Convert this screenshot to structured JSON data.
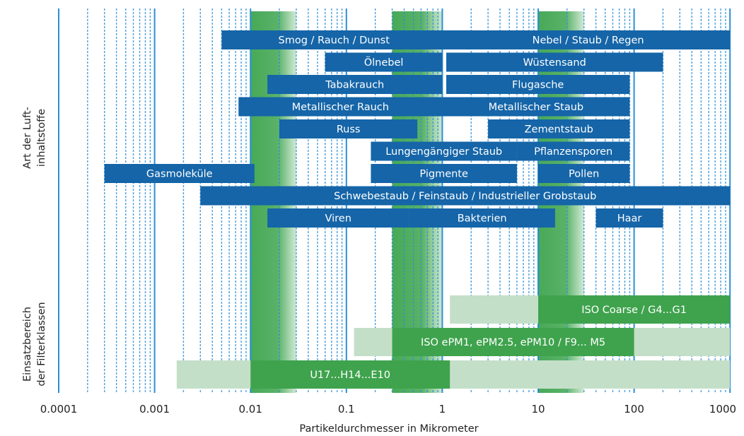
{
  "chart_data": {
    "type": "bar",
    "orientation": "horizontal-range",
    "x_scale": "log",
    "xlim": [
      0.0001,
      1000
    ],
    "xlabel": "Partikeldurchmesser in Mikrometer",
    "x_ticks": [
      {
        "value": 0.0001,
        "label": "0.0001"
      },
      {
        "value": 0.001,
        "label": "0.001"
      },
      {
        "value": 0.01,
        "label": "0.01"
      },
      {
        "value": 0.1,
        "label": "0.1"
      },
      {
        "value": 1,
        "label": "1"
      },
      {
        "value": 10,
        "label": "10"
      },
      {
        "value": 100,
        "label": "100"
      },
      {
        "value": 1000,
        "label": "1000"
      }
    ],
    "group_labels": {
      "contaminants": [
        "Art der Luft-",
        "inhaltstoffe"
      ],
      "filter_classes": [
        "Einsatzbereich",
        "der Filterklassen"
      ]
    },
    "colors": {
      "contaminant_bar": "#1565a8",
      "gridline": "#2a8fd8",
      "filter_main": "#3fa34d",
      "filter_extended": "#c4dfc8",
      "band": "#47a957"
    },
    "highlight_bands": [
      {
        "start": 0.01,
        "end": 0.03
      },
      {
        "start": 0.3,
        "end": 1.0
      },
      {
        "start": 10,
        "end": 30
      }
    ],
    "contaminants": [
      {
        "label": "Smog / Rauch / Dunst",
        "start": 0.005,
        "end": 1.1,
        "row": 0
      },
      {
        "label": "Nebel / Staub / Regen",
        "start": 1.1,
        "end": 1000,
        "row": 0
      },
      {
        "label": "Ölnebel",
        "start": 0.06,
        "end": 1.0,
        "row": 1
      },
      {
        "label": "Wüstensand",
        "start": 1.1,
        "end": 200,
        "row": 1
      },
      {
        "label": "Tabakrauch",
        "start": 0.015,
        "end": 1.0,
        "row": 2
      },
      {
        "label": "Flugasche",
        "start": 1.1,
        "end": 90,
        "row": 2
      },
      {
        "label": "Metallischer Rauch",
        "start": 0.0075,
        "end": 1.0,
        "row": 3
      },
      {
        "label": "Metallischer Staub",
        "start": 1.0,
        "end": 90,
        "row": 3
      },
      {
        "label": "Russ",
        "start": 0.02,
        "end": 0.55,
        "row": 4
      },
      {
        "label": "Zementstaub",
        "start": 3,
        "end": 90,
        "row": 4
      },
      {
        "label": "Lungengängiger Staub",
        "start": 0.18,
        "end": 6,
        "row": 5
      },
      {
        "label": "Pflanzensporen",
        "start": 6,
        "end": 90,
        "row": 5
      },
      {
        "label": "Gasmoleküle",
        "start": 0.0003,
        "end": 0.011,
        "row": 6
      },
      {
        "label": "Pigmente",
        "start": 0.18,
        "end": 6,
        "row": 6
      },
      {
        "label": "Pollen",
        "start": 10,
        "end": 90,
        "row": 6
      },
      {
        "label": "Schwebestaub / Feinstaub / Industrieller Grobstaub",
        "start": 0.003,
        "end": 1000,
        "row": 7
      },
      {
        "label": "Viren",
        "start": 0.015,
        "end": 0.45,
        "row": 8
      },
      {
        "label": "Bakterien",
        "start": 0.45,
        "end": 15,
        "row": 8
      },
      {
        "label": "Haar",
        "start": 40,
        "end": 200,
        "row": 8
      }
    ],
    "filter_classes": [
      {
        "label": "ISO Coarse / G4...G1",
        "main_start": 10,
        "main_end": 1000,
        "ext_start": 1.2,
        "ext_end": 10,
        "row": 0
      },
      {
        "label": "ISO ePM1, ePM2.5, ePM10 / F9... M5",
        "main_start": 0.3,
        "main_end": 100,
        "ext_start": 0.12,
        "ext_end": 1000,
        "row": 1
      },
      {
        "label": "U17...H14...E10",
        "main_start": 0.01,
        "main_end": 1.2,
        "ext_start": 0.0017,
        "ext_end": 1000,
        "row": 2
      }
    ]
  }
}
